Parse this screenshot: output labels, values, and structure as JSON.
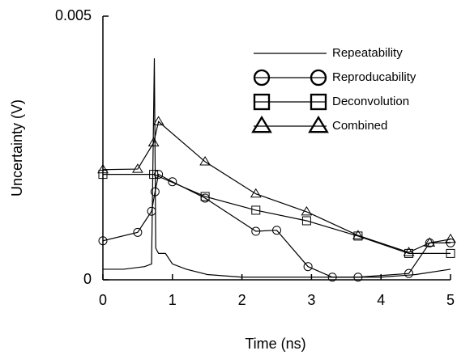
{
  "chart_data": {
    "type": "line",
    "x_label": "Time (ns)",
    "y_label": "Uncertainty (V)",
    "xlim": [
      0,
      5
    ],
    "xticks": [
      0,
      1,
      2,
      3,
      4,
      5
    ],
    "ylim": [
      0,
      0.005
    ],
    "yticks": [
      0,
      0.005
    ],
    "legend": "upper right",
    "series": [
      {
        "name": "Repeatability",
        "color": "#000000",
        "marker": "none",
        "x": [
          0,
          0.3,
          0.6,
          0.7,
          0.74,
          0.76,
          0.8,
          0.9,
          1.0,
          1.2,
          1.5,
          2,
          3,
          4,
          4.5,
          5
        ],
        "values": [
          0.0002,
          0.0002,
          0.00025,
          0.0003,
          0.0042,
          0.0006,
          0.0005,
          0.0005,
          0.0003,
          0.0002,
          0.0001,
          5e-05,
          5e-05,
          5e-05,
          0.0001,
          0.0002
        ]
      },
      {
        "name": "Reproducability",
        "color": "#000000",
        "marker": "circle",
        "x": [
          0,
          0.5,
          0.7,
          0.75,
          0.8,
          1.0,
          1.47,
          2.2,
          2.5,
          2.95,
          3.3,
          3.67,
          4.4,
          4.7,
          5
        ],
        "values": [
          0.00074,
          0.0009,
          0.0013,
          0.00167,
          0.002,
          0.00186,
          0.00155,
          0.00092,
          0.00094,
          0.00025,
          5e-05,
          5e-05,
          0.00012,
          0.0007,
          0.0007
        ]
      },
      {
        "name": "Deconvolution",
        "color": "#000000",
        "marker": "square",
        "x": [
          0,
          0.73,
          1.47,
          2.2,
          2.93,
          3.67,
          4.4,
          5
        ],
        "values": [
          0.002,
          0.002,
          0.00158,
          0.00132,
          0.00112,
          0.00083,
          0.0005,
          0.0005
        ]
      },
      {
        "name": "Combined",
        "color": "#000000",
        "marker": "triangle",
        "x": [
          0,
          0.5,
          0.73,
          0.8,
          1.47,
          2.2,
          2.93,
          3.67,
          4.4,
          4.7,
          5
        ],
        "values": [
          0.00209,
          0.0021,
          0.0026,
          0.003,
          0.00224,
          0.00163,
          0.00129,
          0.00084,
          0.00052,
          0.0007,
          0.00077
        ]
      }
    ]
  }
}
